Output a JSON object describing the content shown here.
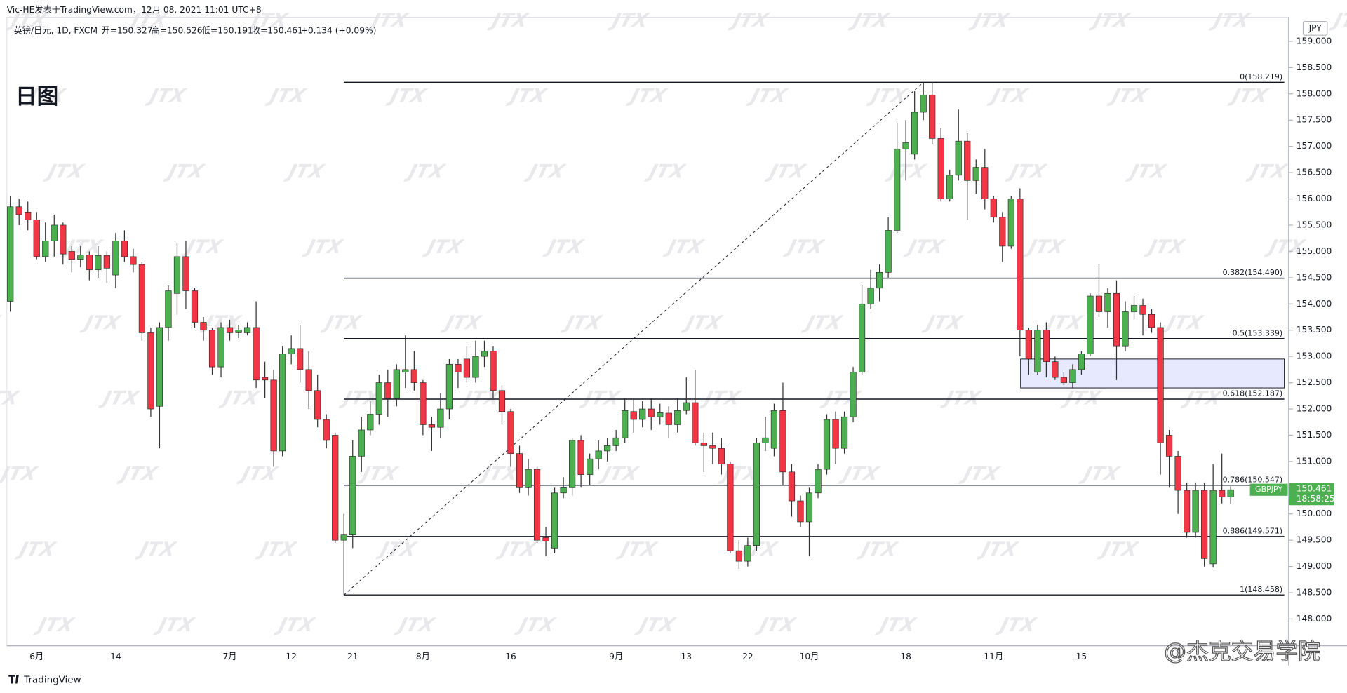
{
  "header": {
    "author_line": "Vic-HE发表于TradingView.com，12月 08, 2021 11:01 UTC+8",
    "symbol": "英镑/日元, 1D, FXCM",
    "ohlc": [
      "开=150.327",
      "高=150.526",
      "低=150.191",
      "收=150.461"
    ],
    "change": "+0.134 (+0.09%)"
  },
  "chart_data": {
    "type": "candlestick",
    "title": "日图",
    "categories": [
      null,
      null,
      null,
      "6月",
      null,
      null,
      null,
      null,
      null,
      null,
      null,
      null,
      "14",
      null,
      null,
      null,
      null,
      null,
      null,
      null,
      null,
      null,
      null,
      null,
      null,
      "7月",
      null,
      null,
      null,
      null,
      null,
      null,
      "12",
      null,
      null,
      null,
      null,
      null,
      null,
      "21",
      null,
      null,
      null,
      null,
      null,
      null,
      null,
      "8月",
      null,
      null,
      null,
      null,
      null,
      null,
      null,
      null,
      null,
      "16",
      null,
      null,
      null,
      null,
      null,
      null,
      null,
      null,
      null,
      null,
      null,
      "9月",
      null,
      null,
      null,
      null,
      null,
      null,
      null,
      "13",
      null,
      null,
      null,
      null,
      null,
      null,
      "22",
      null,
      null,
      null,
      null,
      null,
      null,
      "10月",
      null,
      null,
      null,
      null,
      null,
      null,
      null,
      null,
      null,
      null,
      "18",
      null,
      null,
      null,
      null,
      null,
      null,
      null,
      null,
      null,
      "11月",
      null,
      null,
      null,
      null,
      null,
      null,
      null,
      null,
      null,
      "15",
      null,
      null,
      null,
      null,
      null,
      null,
      null,
      null,
      null,
      null,
      null,
      null,
      null,
      null,
      null,
      null,
      null
    ],
    "open": [
      154.05,
      155.85,
      155.75,
      155.6,
      154.9,
      155.2,
      155.5,
      155.0,
      154.85,
      154.93,
      154.65,
      154.92,
      154.55,
      155.2,
      154.9,
      154.75,
      153.45,
      152.05,
      153.55,
      154.2,
      154.9,
      154.25,
      153.65,
      153.5,
      152.8,
      153.55,
      153.45,
      153.45,
      153.55,
      152.6,
      152.55,
      151.2,
      153.05,
      153.15,
      152.75,
      152.35,
      151.8,
      151.5,
      149.5,
      149.6,
      151.1,
      151.6,
      151.9,
      152.5,
      152.2,
      152.7,
      152.75,
      152.5,
      151.7,
      151.65,
      152.0,
      152.85,
      152.95,
      152.6,
      153.0,
      153.1,
      152.35,
      151.95,
      151.15,
      150.5,
      150.85,
      149.55,
      149.35,
      150.4,
      150.5,
      151.4,
      150.75,
      151.05,
      151.2,
      151.3,
      151.45,
      151.95,
      151.8,
      152.0,
      151.85,
      151.92,
      151.7,
      151.97,
      152.12,
      151.35,
      151.3,
      151.25,
      150.95,
      149.3,
      149.1,
      149.4,
      151.35,
      151.25,
      151.97,
      150.8,
      150.25,
      149.85,
      150.4,
      150.85,
      151.8,
      151.25,
      151.85,
      152.7,
      154.0,
      154.3,
      154.6,
      155.4,
      156.95,
      156.85,
      157.65,
      157.98,
      157.15,
      156.0,
      156.45,
      157.1,
      156.35,
      156.6,
      156.0,
      155.65,
      155.1,
      156.0,
      153.5,
      152.7,
      153.5,
      152.9,
      152.6,
      152.5,
      152.75,
      153.05,
      154.15,
      153.85,
      154.2,
      153.2,
      153.85,
      153.97,
      153.8,
      153.55,
      151.5,
      151.1,
      150.45,
      149.65,
      150.45,
      149.05,
      150.45,
      150.327
    ],
    "high": [
      156.05,
      156.0,
      155.95,
      155.75,
      155.55,
      155.7,
      155.55,
      155.1,
      155.1,
      155.0,
      155.1,
      155.0,
      155.35,
      155.4,
      155.05,
      154.8,
      153.55,
      153.65,
      154.35,
      155.15,
      155.2,
      154.3,
      153.75,
      153.55,
      153.65,
      153.7,
      153.6,
      153.65,
      154.05,
      152.9,
      152.75,
      153.2,
      153.4,
      153.6,
      153.1,
      152.65,
      151.9,
      151.55,
      150.0,
      151.4,
      151.85,
      152.15,
      152.65,
      152.75,
      152.85,
      153.4,
      153.1,
      152.55,
      151.85,
      152.3,
      152.95,
      152.95,
      153.2,
      153.3,
      153.3,
      153.2,
      152.45,
      152.0,
      151.3,
      151.05,
      150.9,
      149.75,
      150.5,
      150.7,
      151.45,
      151.5,
      151.15,
      151.4,
      151.45,
      151.6,
      152.2,
      152.2,
      152.15,
      152.2,
      152.1,
      152.05,
      152.2,
      152.6,
      152.75,
      151.55,
      151.55,
      151.45,
      151.0,
      149.5,
      149.55,
      151.45,
      151.85,
      152.1,
      152.5,
      150.95,
      150.35,
      150.5,
      150.95,
      151.9,
      151.95,
      151.95,
      152.8,
      154.35,
      154.65,
      154.75,
      155.65,
      157.45,
      157.5,
      158.05,
      158.219,
      158.2,
      157.35,
      156.55,
      157.7,
      157.25,
      156.75,
      156.95,
      156.05,
      155.75,
      156.05,
      156.2,
      153.55,
      153.6,
      153.65,
      153.0,
      152.7,
      152.85,
      153.1,
      154.2,
      154.75,
      154.3,
      154.45,
      154.05,
      154.15,
      154.1,
      153.9,
      153.65,
      151.6,
      151.2,
      150.6,
      150.6,
      150.6,
      150.95,
      151.15,
      150.526
    ],
    "low": [
      153.85,
      155.5,
      155.4,
      154.85,
      154.8,
      154.9,
      154.75,
      154.6,
      154.7,
      154.45,
      154.5,
      154.4,
      154.3,
      154.8,
      154.6,
      153.3,
      151.85,
      151.25,
      153.3,
      153.8,
      153.9,
      153.55,
      153.3,
      152.65,
      152.6,
      153.3,
      153.35,
      153.4,
      152.4,
      152.2,
      150.9,
      151.1,
      152.85,
      152.5,
      152.0,
      151.65,
      151.25,
      149.45,
      148.458,
      149.35,
      150.8,
      151.5,
      151.7,
      151.85,
      152.05,
      152.4,
      152.35,
      151.5,
      151.2,
      151.45,
      151.8,
      152.4,
      152.5,
      152.5,
      152.8,
      152.2,
      151.7,
      150.9,
      150.4,
      150.35,
      149.45,
      149.2,
      149.25,
      150.3,
      150.35,
      150.5,
      150.55,
      150.85,
      151.0,
      151.2,
      151.35,
      151.55,
      151.65,
      151.6,
      151.7,
      151.45,
      151.55,
      151.9,
      151.3,
      150.8,
      150.95,
      150.75,
      149.25,
      148.95,
      149.0,
      149.3,
      151.2,
      151.1,
      150.55,
      149.95,
      149.75,
      149.2,
      150.3,
      150.75,
      150.95,
      151.15,
      151.75,
      152.65,
      153.9,
      154.05,
      154.5,
      155.35,
      156.35,
      156.75,
      157.5,
      157.05,
      155.95,
      155.95,
      156.35,
      155.6,
      156.1,
      155.8,
      155.55,
      154.8,
      155.05,
      153.0,
      152.65,
      152.65,
      152.6,
      152.55,
      152.45,
      152.4,
      152.65,
      153.0,
      153.75,
      153.55,
      152.55,
      153.1,
      153.7,
      153.4,
      153.45,
      150.75,
      150.5,
      150.0,
      149.55,
      149.55,
      149.0,
      148.98,
      150.2,
      150.191
    ],
    "close": [
      155.85,
      155.7,
      155.6,
      154.9,
      155.2,
      155.5,
      154.95,
      154.85,
      154.93,
      154.65,
      154.92,
      154.68,
      155.2,
      154.9,
      154.75,
      153.45,
      152.0,
      153.55,
      154.25,
      154.9,
      154.25,
      153.65,
      153.5,
      152.8,
      153.55,
      153.45,
      153.5,
      153.55,
      152.55,
      152.55,
      151.2,
      153.05,
      153.15,
      152.75,
      152.35,
      151.8,
      151.4,
      149.5,
      149.6,
      151.1,
      151.6,
      151.9,
      152.5,
      152.2,
      152.75,
      152.75,
      152.5,
      151.7,
      151.65,
      152.0,
      152.85,
      152.7,
      152.6,
      153.0,
      153.1,
      152.35,
      151.95,
      151.15,
      150.5,
      150.85,
      149.5,
      149.48,
      150.4,
      150.5,
      151.4,
      150.75,
      151.05,
      151.2,
      151.3,
      151.45,
      151.97,
      151.8,
      152.0,
      151.85,
      151.93,
      151.7,
      151.97,
      152.12,
      151.35,
      151.3,
      151.25,
      150.95,
      149.3,
      149.1,
      149.4,
      151.35,
      151.45,
      151.97,
      150.8,
      150.25,
      149.85,
      150.4,
      150.85,
      151.8,
      151.25,
      151.85,
      152.7,
      154.0,
      154.3,
      154.6,
      155.4,
      156.95,
      157.07,
      157.65,
      157.98,
      157.15,
      156.0,
      156.45,
      157.1,
      156.35,
      156.6,
      156.0,
      155.65,
      155.1,
      156.0,
      153.5,
      152.95,
      153.5,
      152.9,
      152.6,
      152.5,
      152.75,
      153.05,
      154.15,
      153.85,
      154.2,
      153.2,
      153.85,
      153.97,
      153.8,
      153.55,
      151.35,
      151.1,
      150.45,
      149.65,
      150.45,
      149.15,
      150.45,
      150.327,
      150.461
    ],
    "up_color": "#4caf50",
    "down_color": "#f23645",
    "ylim": [
      147.49,
      159.46
    ],
    "yticks": [
      {
        "value": 148,
        "label": "148.000"
      },
      {
        "value": 148.5,
        "label": "148.500"
      },
      {
        "value": 149,
        "label": "149.000"
      },
      {
        "value": 149.5,
        "label": "149.500"
      },
      {
        "value": 150,
        "label": "150.000"
      },
      {
        "value": 150.5,
        "label": "150.500"
      },
      {
        "value": 151,
        "label": "151.000"
      },
      {
        "value": 151.5,
        "label": "151.500"
      },
      {
        "value": 152,
        "label": "152.000"
      },
      {
        "value": 152.5,
        "label": "152.500"
      },
      {
        "value": 153,
        "label": "153.000"
      },
      {
        "value": 153.5,
        "label": "153.500"
      },
      {
        "value": 154,
        "label": "154.000"
      },
      {
        "value": 154.5,
        "label": "154.500"
      },
      {
        "value": 155,
        "label": "155.000"
      },
      {
        "value": 155.5,
        "label": "155.500"
      },
      {
        "value": 156,
        "label": "156.000"
      },
      {
        "value": 156.5,
        "label": "156.500"
      },
      {
        "value": 157,
        "label": "157.000"
      },
      {
        "value": 157.5,
        "label": "157.500"
      },
      {
        "value": 158,
        "label": "158.000"
      },
      {
        "value": 158.5,
        "label": "158.500"
      },
      {
        "value": 159,
        "label": "159.000"
      }
    ],
    "currency": "JPY",
    "fib_levels": [
      {
        "value": 158.219,
        "label": "0(158.219)"
      },
      {
        "value": 154.49,
        "label": "0.382(154.490)"
      },
      {
        "value": 153.339,
        "label": "0.5(153.339)"
      },
      {
        "value": 152.187,
        "label": "0.618(152.187)"
      },
      {
        "value": 150.547,
        "label": "0.786(150.547)"
      },
      {
        "value": 149.571,
        "label": "0.886(149.571)"
      },
      {
        "value": 148.458,
        "label": "1(148.458)"
      }
    ],
    "highlight_zone": {
      "low": 152.4,
      "high": 152.95
    },
    "last_price": 150.461,
    "countdown": "18:58:25",
    "symbol_tag": "GBPJPY",
    "grid": false
  },
  "watermark": "JTX",
  "footer": {
    "logo": "TradingView",
    "credit": "@杰克交易学院"
  }
}
